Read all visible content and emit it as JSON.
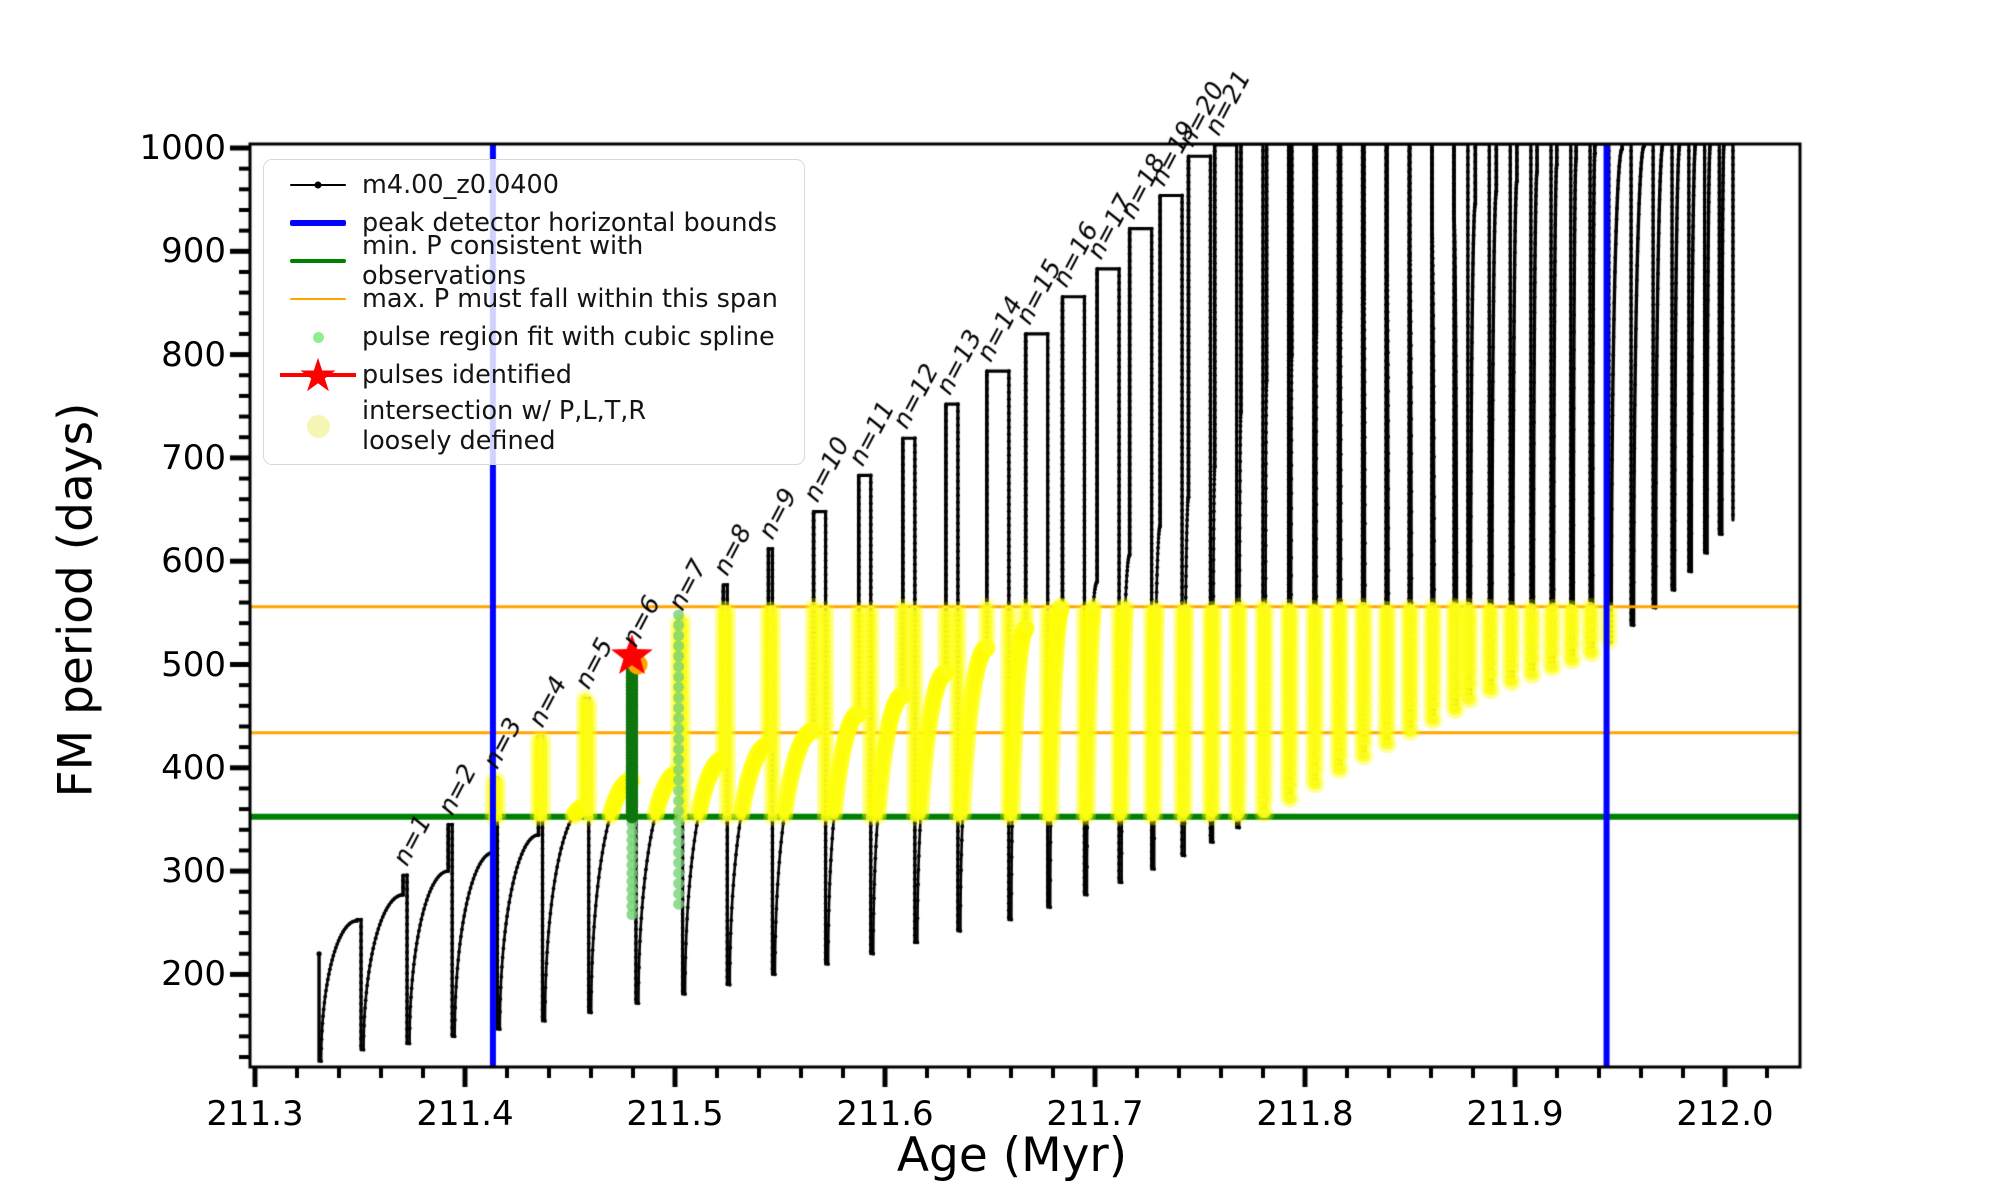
{
  "chart_data": {
    "type": "line",
    "title": "",
    "xlabel": "Age (Myr)",
    "ylabel": "FM period (days)",
    "xlim": [
      211.2976,
      212.0357
    ],
    "ylim": [
      110,
      1004
    ],
    "x_major_ticks": [
      211.3,
      211.4,
      211.5,
      211.6,
      211.7,
      211.8,
      211.9,
      212.0
    ],
    "x_tick_labels": [
      "211.3",
      "211.4",
      "211.5",
      "211.6",
      "211.7",
      "211.8",
      "211.9",
      "212.0"
    ],
    "x_minor_step": 0.02,
    "y_major_ticks": [
      200,
      300,
      400,
      500,
      600,
      700,
      800,
      900,
      1000
    ],
    "y_tick_labels": [
      "200",
      "300",
      "400",
      "500",
      "600",
      "700",
      "800",
      "900",
      "1000"
    ],
    "y_minor_step": 20,
    "grid": false,
    "series_label": "m4.00_z0.0400",
    "series_color": "#000000",
    "peak_detector_bounds_t": [
      211.4133,
      211.9436
    ],
    "peak_detector_color": "#0000ff",
    "min_P_line": 352.5,
    "min_P_color": "#008000",
    "max_P_span": [
      434,
      556
    ],
    "max_P_color": "#ffa500",
    "intersection_band": {
      "P_min": 352.5,
      "P_max": 556.5,
      "t_min": 211.4133,
      "t_max": 211.9436,
      "color": "#ffff00"
    },
    "pulse_fit_regions": [
      {
        "tooth": 6,
        "t": 211.4795,
        "P_lo": 258,
        "P_hi": 509,
        "dark_above": 352,
        "dark_color": "#0f780f",
        "pale_color": "#8adf8a"
      },
      {
        "tooth": 7,
        "t": 211.5017,
        "P_lo": 268,
        "P_hi": 556,
        "pale_color": "#8adf8a"
      }
    ],
    "pulses_identified": [
      {
        "t": 211.4795,
        "P": 508
      }
    ],
    "pulse_marker_color": "#ff0000",
    "orange_marker": {
      "t": 211.4808,
      "P": 500
    },
    "pre_stub": {
      "t": 211.3305,
      "P_top": 220,
      "P_bottom": 116
    },
    "teeth": [
      [
        211.3486,
        116,
        252,
        253,
        null
      ],
      [
        211.3705,
        127,
        277,
        296,
        "n=1"
      ],
      [
        211.392,
        133,
        300,
        345,
        "n=2"
      ],
      [
        211.4135,
        140,
        318,
        390,
        "n=3"
      ],
      [
        211.435,
        147,
        335,
        430,
        "n=4"
      ],
      [
        211.457,
        155,
        362,
        467,
        "n=5"
      ],
      [
        211.4795,
        163,
        388,
        508,
        "n=6"
      ],
      [
        211.5017,
        172,
        395,
        543,
        "n=7"
      ],
      [
        211.523,
        181,
        408,
        577,
        "n=8"
      ],
      [
        211.5445,
        190,
        422,
        612,
        "n=9"
      ],
      [
        211.566,
        200,
        436,
        648,
        "n=10"
      ],
      [
        211.5875,
        210,
        452,
        683,
        "n=11"
      ],
      [
        211.6085,
        220,
        470,
        719,
        "n=12"
      ],
      [
        211.629,
        231,
        492,
        752,
        "n=13"
      ],
      [
        211.6485,
        242,
        516,
        784,
        "n=14"
      ],
      [
        211.667,
        253,
        535,
        820,
        "n=15"
      ],
      [
        211.6845,
        265,
        558,
        856,
        "n=16"
      ],
      [
        211.701,
        277,
        580,
        883,
        "n=17"
      ],
      [
        211.7165,
        289,
        606,
        922,
        "n=18"
      ],
      [
        211.731,
        302,
        634,
        954,
        "n=19"
      ],
      [
        211.7445,
        315,
        662,
        992,
        "n=20"
      ],
      [
        211.757,
        328,
        692,
        1003,
        "n=21"
      ],
      [
        211.7695,
        342,
        745,
        1020,
        null
      ],
      [
        211.7817,
        356,
        775,
        1020,
        null
      ],
      [
        211.7937,
        370,
        800,
        1020,
        null
      ],
      [
        211.8054,
        384,
        822,
        1020,
        null
      ],
      [
        211.8169,
        398,
        842,
        1020,
        null
      ],
      [
        211.8281,
        411,
        860,
        1020,
        null
      ],
      [
        211.8391,
        423,
        878,
        1020,
        null
      ],
      [
        211.8499,
        435,
        898,
        1020,
        null
      ],
      [
        211.8605,
        446,
        916,
        1020,
        null
      ],
      [
        211.8709,
        456,
        932,
        1020,
        null
      ],
      [
        211.8811,
        466,
        946,
        1020,
        null
      ],
      [
        211.8911,
        475,
        958,
        1020,
        null
      ],
      [
        211.9009,
        483,
        968,
        1020,
        null
      ],
      [
        211.9105,
        490,
        977,
        1020,
        null
      ],
      [
        211.9199,
        497,
        984,
        1020,
        null
      ],
      [
        211.9291,
        504,
        990,
        1020,
        null
      ],
      [
        211.938,
        511,
        995,
        1020,
        null
      ],
      [
        211.951,
        522,
        999,
        1020,
        null
      ],
      [
        211.9615,
        538,
        1002,
        1020,
        null
      ],
      [
        211.9705,
        555,
        1004,
        1020,
        null
      ],
      [
        211.9785,
        572,
        1004,
        1020,
        null
      ],
      [
        211.986,
        590,
        1004,
        1020,
        null
      ],
      [
        211.993,
        608,
        1004,
        1020,
        null
      ],
      [
        211.9995,
        626,
        1004,
        1020,
        null
      ]
    ],
    "final_min": 640,
    "legend_position": "upper left"
  },
  "legend": {
    "items": [
      {
        "swatch": "line-dot",
        "color": "#000000",
        "lw": 2,
        "label": "m4.00_z0.0400"
      },
      {
        "swatch": "line",
        "color": "#0000ff",
        "lw": 6,
        "label": "peak detector horizontal bounds"
      },
      {
        "swatch": "line",
        "color": "#008000",
        "lw": 4.5,
        "label": "min. P consistent with observations"
      },
      {
        "swatch": "line",
        "color": "#ffa500",
        "lw": 2.5,
        "label": "max. P must fall within this span"
      },
      {
        "swatch": "dot",
        "color": "#90ee90",
        "size": 11,
        "label": "pulse region fit with cubic spline"
      },
      {
        "swatch": "star",
        "color": "#ff0000",
        "label": "pulses identified"
      },
      {
        "swatch": "dot",
        "color": "#f6f6b4",
        "size": 23,
        "label": "intersection w/ P,L,T,R\nloosely defined"
      }
    ]
  }
}
